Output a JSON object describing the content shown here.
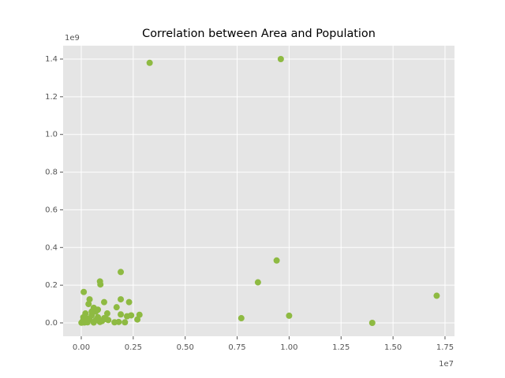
{
  "chart_data": {
    "type": "scatter",
    "title": "Correlation between Area and Population",
    "x_offset_label": "1e7",
    "y_offset_label": "1e9",
    "series": [
      {
        "color": "#8eba42",
        "x": [
          3290000,
          9600000,
          9400000,
          8500000,
          7700000,
          10000000,
          14000000,
          17100000,
          1900000,
          900000,
          920000,
          120000,
          1900000,
          2300000,
          1100000,
          1700000,
          400000,
          350000,
          2800000,
          2700000,
          2100000,
          2200000,
          2400000,
          1900000,
          1600000,
          1800000,
          1250000,
          1200000,
          1000000,
          800000,
          700000,
          600000,
          500000,
          400000,
          300000,
          200000,
          100000,
          50000,
          10000,
          150000,
          300000,
          600000,
          900000,
          1100000,
          1300000,
          700000,
          800000,
          500000,
          250000,
          100000
        ],
        "values": [
          1380000000,
          1400000000,
          331000000,
          215000000,
          25000000,
          38000000,
          0,
          144000000,
          270000000,
          220000000,
          204000000,
          164000000,
          125000000,
          110000000,
          110000000,
          83000000,
          125000000,
          100000000,
          43000000,
          18000000,
          3000000,
          35000000,
          40000000,
          45000000,
          3000000,
          5000000,
          50000000,
          20000000,
          10000000,
          30000000,
          60000000,
          80000000,
          40000000,
          20000000,
          10000000,
          50000000,
          30000000,
          5000000,
          1000000,
          2000000,
          3000000,
          2000000,
          5000000,
          25000000,
          15000000,
          15000000,
          70000000,
          60000000,
          25000000,
          15000000
        ]
      }
    ],
    "xlim": [
      -873000,
      17957000
    ],
    "ylim": [
      -71000000,
      1471000000
    ],
    "xticks": [
      {
        "value": 0,
        "label": "0.00"
      },
      {
        "value": 2500000,
        "label": "0.25"
      },
      {
        "value": 5000000,
        "label": "0.50"
      },
      {
        "value": 7500000,
        "label": "0.75"
      },
      {
        "value": 10000000,
        "label": "1.00"
      },
      {
        "value": 12500000,
        "label": "1.25"
      },
      {
        "value": 15000000,
        "label": "1.50"
      },
      {
        "value": 17500000,
        "label": "1.75"
      }
    ],
    "yticks": [
      {
        "value": 0,
        "label": "0.0"
      },
      {
        "value": 200000000,
        "label": "0.2"
      },
      {
        "value": 400000000,
        "label": "0.4"
      },
      {
        "value": 600000000,
        "label": "0.6"
      },
      {
        "value": 800000000,
        "label": "0.8"
      },
      {
        "value": 1000000000,
        "label": "1.0"
      },
      {
        "value": 1200000000,
        "label": "1.2"
      },
      {
        "value": 1400000000,
        "label": "1.4"
      }
    ],
    "grid": true
  }
}
